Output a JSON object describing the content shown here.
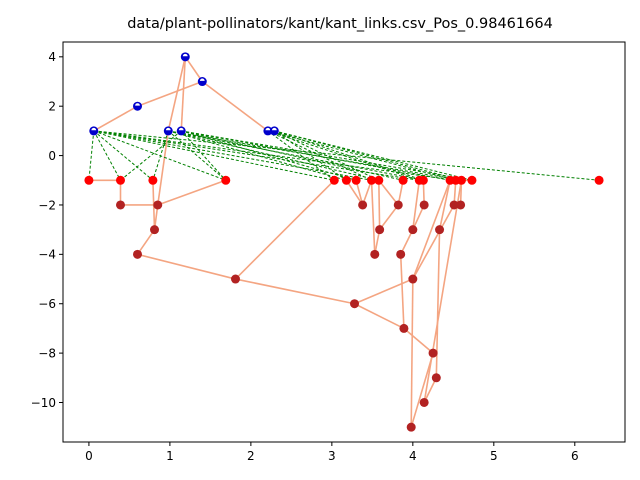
{
  "chart_data": {
    "type": "scatter",
    "title": "data/plant-pollinators/kant/kant_links.csv_Pos_0.98461664",
    "xlabel": "",
    "ylabel": "",
    "xlim": [
      -0.32,
      6.62
    ],
    "ylim": [
      -11.6,
      4.6
    ],
    "x_ticks": [
      0,
      1,
      2,
      3,
      4,
      5,
      6
    ],
    "y_ticks": [
      4,
      2,
      0,
      -2,
      -4,
      -6,
      -8,
      -10
    ],
    "grid": false,
    "colors": {
      "tree_edge": "#f4a582",
      "link_edge": "#008000",
      "blue_node_fill": "#0000cc",
      "blue_node_top": "#ffffff",
      "red_node_fill": "#ff0000",
      "dark_red_node_fill": "#b22222"
    },
    "blue_nodes": [
      [
        0.06,
        1
      ],
      [
        0.6,
        2
      ],
      [
        0.98,
        1
      ],
      [
        1.14,
        1
      ],
      [
        1.19,
        4
      ],
      [
        1.4,
        3
      ],
      [
        2.21,
        1
      ],
      [
        2.29,
        1
      ]
    ],
    "red_nodes": [
      [
        0,
        -1
      ],
      [
        0.39,
        -1
      ],
      [
        0.79,
        -1
      ],
      [
        1.69,
        -1
      ],
      [
        3.03,
        -1
      ],
      [
        3.18,
        -1
      ],
      [
        3.3,
        -1
      ],
      [
        3.49,
        -1
      ],
      [
        3.58,
        -1
      ],
      [
        3.88,
        -1
      ],
      [
        4.08,
        -1
      ],
      [
        4.13,
        -1
      ],
      [
        4.46,
        -1
      ],
      [
        4.53,
        -1
      ],
      [
        4.6,
        -1
      ],
      [
        4.73,
        -1
      ],
      [
        6.3,
        -1
      ]
    ],
    "dark_red_nodes": [
      [
        0.39,
        -2
      ],
      [
        0.85,
        -2
      ],
      [
        0.81,
        -3
      ],
      [
        0.6,
        -4
      ],
      [
        1.81,
        -5
      ],
      [
        3.38,
        -2
      ],
      [
        3.82,
        -2
      ],
      [
        4.14,
        -2
      ],
      [
        4.51,
        -2
      ],
      [
        4.59,
        -2
      ],
      [
        3.59,
        -3
      ],
      [
        4.0,
        -3
      ],
      [
        4.33,
        -3
      ],
      [
        3.53,
        -4
      ],
      [
        3.85,
        -4
      ],
      [
        3.28,
        -6
      ],
      [
        4.0,
        -5
      ],
      [
        3.89,
        -7
      ],
      [
        4.25,
        -8
      ],
      [
        4.29,
        -9
      ],
      [
        4.14,
        -10
      ],
      [
        3.98,
        -11
      ]
    ],
    "tree_edges": [
      [
        [
          0.06,
          1
        ],
        [
          0.6,
          2
        ]
      ],
      [
        [
          0.6,
          2
        ],
        [
          1.4,
          3
        ]
      ],
      [
        [
          1.4,
          3
        ],
        [
          1.19,
          4
        ]
      ],
      [
        [
          1.19,
          4
        ],
        [
          0.98,
          1
        ]
      ],
      [
        [
          1.19,
          4
        ],
        [
          1.14,
          1
        ]
      ],
      [
        [
          1.4,
          3
        ],
        [
          2.21,
          1
        ]
      ],
      [
        [
          2.21,
          1
        ],
        [
          2.29,
          1
        ]
      ],
      [
        [
          0.98,
          1
        ],
        [
          0.85,
          -2
        ]
      ],
      [
        [
          0.0,
          -1
        ],
        [
          0.39,
          -1
        ]
      ],
      [
        [
          0.39,
          -1
        ],
        [
          0.39,
          -2
        ]
      ],
      [
        [
          0.39,
          -2
        ],
        [
          0.85,
          -2
        ]
      ],
      [
        [
          0.85,
          -2
        ],
        [
          0.81,
          -3
        ]
      ],
      [
        [
          0.85,
          -2
        ],
        [
          1.69,
          -1
        ]
      ],
      [
        [
          0.79,
          -1
        ],
        [
          0.81,
          -3
        ]
      ],
      [
        [
          0.81,
          -3
        ],
        [
          0.6,
          -4
        ]
      ],
      [
        [
          0.6,
          -4
        ],
        [
          1.81,
          -5
        ]
      ],
      [
        [
          1.81,
          -5
        ],
        [
          3.03,
          -1
        ]
      ],
      [
        [
          1.81,
          -5
        ],
        [
          3.28,
          -6
        ]
      ],
      [
        [
          3.28,
          -6
        ],
        [
          4.0,
          -5
        ]
      ],
      [
        [
          3.28,
          -6
        ],
        [
          3.89,
          -7
        ]
      ],
      [
        [
          3.18,
          -1
        ],
        [
          3.38,
          -2
        ]
      ],
      [
        [
          3.3,
          -1
        ],
        [
          3.38,
          -2
        ]
      ],
      [
        [
          3.38,
          -2
        ],
        [
          3.49,
          -1
        ]
      ],
      [
        [
          3.49,
          -1
        ],
        [
          3.53,
          -4
        ]
      ],
      [
        [
          3.53,
          -4
        ],
        [
          3.59,
          -3
        ]
      ],
      [
        [
          3.59,
          -3
        ],
        [
          3.58,
          -1
        ]
      ],
      [
        [
          3.59,
          -3
        ],
        [
          3.82,
          -2
        ]
      ],
      [
        [
          3.82,
          -2
        ],
        [
          3.88,
          -1
        ]
      ],
      [
        [
          3.82,
          -2
        ],
        [
          3.58,
          -1
        ]
      ],
      [
        [
          3.85,
          -4
        ],
        [
          4.0,
          -3
        ]
      ],
      [
        [
          4.0,
          -3
        ],
        [
          4.14,
          -2
        ]
      ],
      [
        [
          4.14,
          -2
        ],
        [
          4.13,
          -1
        ]
      ],
      [
        [
          4.0,
          -3
        ],
        [
          4.08,
          -1
        ]
      ],
      [
        [
          3.85,
          -4
        ],
        [
          3.89,
          -7
        ]
      ],
      [
        [
          3.89,
          -7
        ],
        [
          4.25,
          -8
        ]
      ],
      [
        [
          4.25,
          -8
        ],
        [
          3.98,
          -11
        ]
      ],
      [
        [
          3.98,
          -11
        ],
        [
          4.0,
          -5
        ]
      ],
      [
        [
          4.0,
          -5
        ],
        [
          4.46,
          -1
        ]
      ],
      [
        [
          4.0,
          -5
        ],
        [
          4.51,
          -2
        ]
      ],
      [
        [
          4.51,
          -2
        ],
        [
          4.53,
          -1
        ]
      ],
      [
        [
          4.51,
          -2
        ],
        [
          4.59,
          -2
        ]
      ],
      [
        [
          4.59,
          -2
        ],
        [
          4.6,
          -1
        ]
      ],
      [
        [
          4.33,
          -3
        ],
        [
          4.29,
          -9
        ]
      ],
      [
        [
          4.29,
          -9
        ],
        [
          4.14,
          -10
        ]
      ],
      [
        [
          4.14,
          -10
        ],
        [
          4.6,
          -1
        ]
      ],
      [
        [
          4.33,
          -3
        ],
        [
          4.46,
          -1
        ]
      ],
      [
        [
          4.6,
          -1
        ],
        [
          4.73,
          -1
        ]
      ]
    ],
    "link_edges": [
      [
        [
          0.06,
          1
        ],
        [
          0.0,
          -1
        ]
      ],
      [
        [
          0.06,
          1
        ],
        [
          0.39,
          -1
        ]
      ],
      [
        [
          0.06,
          1
        ],
        [
          0.79,
          -1
        ]
      ],
      [
        [
          0.06,
          1
        ],
        [
          1.69,
          -1
        ]
      ],
      [
        [
          0.06,
          1
        ],
        [
          3.03,
          -1
        ]
      ],
      [
        [
          0.06,
          1
        ],
        [
          3.49,
          -1
        ]
      ],
      [
        [
          0.06,
          1
        ],
        [
          4.08,
          -1
        ]
      ],
      [
        [
          0.06,
          1
        ],
        [
          4.53,
          -1
        ]
      ],
      [
        [
          0.06,
          1
        ],
        [
          6.3,
          -1
        ]
      ],
      [
        [
          0.98,
          1
        ],
        [
          0.79,
          -1
        ]
      ],
      [
        [
          0.98,
          1
        ],
        [
          1.69,
          -1
        ]
      ],
      [
        [
          0.98,
          1
        ],
        [
          3.18,
          -1
        ]
      ],
      [
        [
          0.98,
          1
        ],
        [
          3.58,
          -1
        ]
      ],
      [
        [
          0.98,
          1
        ],
        [
          4.13,
          -1
        ]
      ],
      [
        [
          0.98,
          1
        ],
        [
          4.6,
          -1
        ]
      ],
      [
        [
          1.14,
          1
        ],
        [
          0.39,
          -1
        ]
      ],
      [
        [
          1.14,
          1
        ],
        [
          1.69,
          -1
        ]
      ],
      [
        [
          1.14,
          1
        ],
        [
          3.3,
          -1
        ]
      ],
      [
        [
          1.14,
          1
        ],
        [
          3.88,
          -1
        ]
      ],
      [
        [
          1.14,
          1
        ],
        [
          4.46,
          -1
        ]
      ],
      [
        [
          1.14,
          1
        ],
        [
          4.73,
          -1
        ]
      ],
      [
        [
          2.21,
          1
        ],
        [
          3.03,
          -1
        ]
      ],
      [
        [
          2.21,
          1
        ],
        [
          3.49,
          -1
        ]
      ],
      [
        [
          2.21,
          1
        ],
        [
          4.08,
          -1
        ]
      ],
      [
        [
          2.21,
          1
        ],
        [
          4.53,
          -1
        ]
      ],
      [
        [
          2.29,
          1
        ],
        [
          3.18,
          -1
        ]
      ],
      [
        [
          2.29,
          1
        ],
        [
          3.58,
          -1
        ]
      ],
      [
        [
          2.29,
          1
        ],
        [
          4.13,
          -1
        ]
      ],
      [
        [
          2.29,
          1
        ],
        [
          4.6,
          -1
        ]
      ],
      [
        [
          2.29,
          1
        ],
        [
          4.73,
          -1
        ]
      ]
    ]
  }
}
